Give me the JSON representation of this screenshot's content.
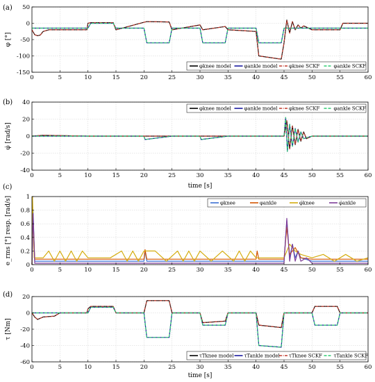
{
  "chart_data": [
    {
      "type": "line",
      "panel_label": "(a)",
      "ylabel": "φ [°]",
      "xlabel": "",
      "xlim": [
        0,
        60
      ],
      "ylim": [
        -150,
        50
      ],
      "xticks": [
        0,
        5,
        10,
        15,
        20,
        25,
        30,
        35,
        40,
        45,
        50,
        55,
        60
      ],
      "yticks": [
        -150,
        -100,
        -50,
        0,
        50
      ],
      "grid": true,
      "legend_position": "bottom-right",
      "series": [
        {
          "name": "φknee model",
          "color": "#000000",
          "dash": "solid",
          "x": [
            0,
            0.5,
            1,
            1.5,
            2,
            3,
            5,
            9.8,
            10,
            10.5,
            14.5,
            15,
            20,
            20.5,
            24.5,
            25,
            30,
            30.5,
            34.5,
            35,
            40,
            40.5,
            44.5,
            45,
            45.5,
            46,
            46.5,
            47,
            47.5,
            48,
            48.5,
            49,
            50,
            55,
            55.5,
            60
          ],
          "y": [
            -20,
            -35,
            -38,
            -36,
            -25,
            -20,
            -20,
            -20,
            0,
            2,
            2,
            -20,
            3,
            5,
            4,
            -20,
            -5,
            -20,
            -10,
            -20,
            -25,
            -100,
            -110,
            -60,
            10,
            -30,
            5,
            -20,
            -5,
            -15,
            -8,
            -12,
            -20,
            -20,
            0,
            0
          ]
        },
        {
          "name": "φankle model",
          "color": "#1a1aa0",
          "dash": "solid",
          "x": [
            0,
            10,
            10.5,
            14.5,
            15,
            20,
            20.5,
            24.5,
            25,
            30,
            30.5,
            34.5,
            35,
            40,
            40.5,
            44.5,
            45,
            55,
            55.5,
            60
          ],
          "y": [
            -15,
            -15,
            0,
            0,
            -15,
            -15,
            -60,
            -60,
            -15,
            -15,
            -60,
            -60,
            -15,
            -15,
            -60,
            -60,
            -15,
            -15,
            -15,
            -15
          ]
        },
        {
          "name": "φknee SCKF",
          "color": "#c0392b",
          "dash": "dashdot",
          "x": [
            0,
            0.5,
            1,
            1.5,
            2,
            3,
            5,
            9.8,
            10,
            10.5,
            14.5,
            15,
            20,
            20.5,
            24.5,
            25,
            30,
            30.5,
            34.5,
            35,
            40,
            40.5,
            44.5,
            45,
            45.5,
            46,
            46.5,
            47,
            47.5,
            48,
            48.5,
            49,
            50,
            55,
            55.5,
            60
          ],
          "y": [
            -20,
            -35,
            -38,
            -36,
            -25,
            -20,
            -20,
            -20,
            0,
            2,
            2,
            -20,
            3,
            5,
            4,
            -20,
            -5,
            -20,
            -10,
            -20,
            -25,
            -100,
            -110,
            -60,
            10,
            -30,
            5,
            -20,
            -5,
            -15,
            -8,
            -12,
            -20,
            -20,
            0,
            0
          ]
        },
        {
          "name": "φankle SCKF",
          "color": "#2ecc71",
          "dash": "dashed",
          "x": [
            0,
            10,
            10.5,
            14.5,
            15,
            20,
            20.5,
            24.5,
            25,
            30,
            30.5,
            34.5,
            35,
            40,
            40.5,
            44.5,
            45,
            55,
            55.5,
            60
          ],
          "y": [
            -15,
            -15,
            0,
            0,
            -15,
            -15,
            -60,
            -60,
            -15,
            -15,
            -60,
            -60,
            -15,
            -15,
            -60,
            -60,
            -15,
            -15,
            -15,
            -15
          ]
        }
      ]
    },
    {
      "type": "line",
      "panel_label": "(b)",
      "ylabel": "φ̇ [rad/s]",
      "xlabel": "time [s]",
      "xlim": [
        0,
        60
      ],
      "ylim": [
        -40,
        40
      ],
      "xticks": [
        0,
        5,
        10,
        15,
        20,
        25,
        30,
        35,
        40,
        45,
        50,
        55,
        60
      ],
      "yticks": [
        -40,
        -20,
        0,
        20,
        40
      ],
      "grid": true,
      "legend_position": "top-right",
      "series": [
        {
          "name": "φknee model",
          "color": "#000000",
          "dash": "solid",
          "x": [
            0,
            2,
            10,
            15,
            20,
            25,
            30,
            35,
            40,
            45,
            45.5,
            46,
            46.5,
            47,
            47.5,
            48,
            48.5,
            49,
            50,
            55,
            60
          ],
          "y": [
            0,
            1,
            0,
            0,
            0,
            0,
            0,
            0,
            0,
            0,
            18,
            -15,
            12,
            -10,
            8,
            -6,
            5,
            -3,
            0,
            0,
            0
          ]
        },
        {
          "name": "φankle model",
          "color": "#1a1aa0",
          "dash": "solid",
          "x": [
            0,
            10,
            20,
            20.2,
            25,
            30,
            30.2,
            35,
            40,
            45,
            45.3,
            45.6,
            46,
            46.5,
            47,
            47.5,
            48,
            48.5,
            50,
            60
          ],
          "y": [
            0,
            0,
            0,
            -4,
            0,
            0,
            -4,
            0,
            0,
            0,
            22,
            -18,
            14,
            -12,
            9,
            -7,
            5,
            -3,
            0,
            0
          ]
        },
        {
          "name": "φknee SCKF",
          "color": "#c0392b",
          "dash": "dashdot",
          "x": [
            0,
            2,
            10,
            15,
            20,
            25,
            30,
            35,
            40,
            45,
            45.5,
            46,
            46.5,
            47,
            47.5,
            48,
            48.5,
            49,
            50,
            55,
            60
          ],
          "y": [
            0,
            1,
            0,
            0,
            0,
            0,
            0,
            0,
            0,
            0,
            18,
            -15,
            12,
            -10,
            8,
            -6,
            5,
            -3,
            0,
            0,
            0
          ]
        },
        {
          "name": "φankle SCKF",
          "color": "#2ecc71",
          "dash": "dashed",
          "x": [
            0,
            10,
            20,
            20.2,
            25,
            30,
            30.2,
            35,
            40,
            45,
            45.3,
            45.6,
            46,
            46.5,
            47,
            47.5,
            48,
            48.5,
            50,
            60
          ],
          "y": [
            0,
            0,
            0,
            -4,
            0,
            0,
            -4,
            0,
            0,
            0,
            22,
            -18,
            14,
            -12,
            9,
            -7,
            5,
            -3,
            0,
            0
          ]
        }
      ]
    },
    {
      "type": "line",
      "panel_label": "(c)",
      "ylabel": "e_rms [°] resp. [rad/s]",
      "xlabel": "",
      "xlim": [
        0,
        60
      ],
      "ylim": [
        0,
        1
      ],
      "xticks": [
        0,
        5,
        10,
        15,
        20,
        25,
        30,
        35,
        40,
        45,
        50,
        55,
        60
      ],
      "yticks": [
        0,
        0.2,
        0.4,
        0.6,
        0.8,
        1
      ],
      "grid": true,
      "legend_position": "top-right",
      "series": [
        {
          "name": "φknee",
          "color": "#3b6fd4",
          "dash": "solid",
          "x": [
            0,
            0.2,
            0.5,
            5,
            10,
            20,
            20.2,
            20.5,
            30,
            40,
            45,
            45.5,
            46,
            46.5,
            47,
            47.5,
            48,
            50,
            55,
            60
          ],
          "y": [
            0,
            0.8,
            0.05,
            0.05,
            0.05,
            0.05,
            0.2,
            0.05,
            0.05,
            0.05,
            0.05,
            0.65,
            0.1,
            0.3,
            0.1,
            0.2,
            0.1,
            0.05,
            0.05,
            0.05
          ]
        },
        {
          "name": "φankle",
          "color": "#d35400",
          "dash": "solid",
          "x": [
            0,
            0.2,
            0.5,
            10,
            20,
            20.2,
            20.5,
            30,
            40,
            40.2,
            40.5,
            45,
            45.5,
            46,
            47,
            48,
            50,
            60
          ],
          "y": [
            0,
            0.7,
            0.08,
            0.08,
            0.08,
            0.22,
            0.08,
            0.08,
            0.08,
            0.2,
            0.08,
            0.08,
            0.55,
            0.15,
            0.25,
            0.1,
            0.08,
            0.08
          ]
        },
        {
          "name": "φ̇knee",
          "color": "#d4ac0d",
          "dash": "solid",
          "x": [
            0,
            0.1,
            0.4,
            2,
            3,
            4,
            5,
            6,
            7,
            8,
            9,
            10,
            12,
            14,
            16,
            17,
            18,
            19,
            20,
            22,
            24,
            26,
            27,
            28,
            29,
            30,
            32,
            34,
            36,
            37,
            38,
            39,
            40,
            42,
            44,
            45,
            46,
            47,
            48,
            50,
            52,
            54,
            56,
            58,
            60
          ],
          "y": [
            0,
            1,
            0.1,
            0.1,
            0.2,
            0.05,
            0.2,
            0.05,
            0.2,
            0.05,
            0.2,
            0.1,
            0.1,
            0.1,
            0.2,
            0.05,
            0.2,
            0.05,
            0.2,
            0.2,
            0.05,
            0.2,
            0.05,
            0.2,
            0.05,
            0.2,
            0.05,
            0.2,
            0.05,
            0.2,
            0.05,
            0.2,
            0.1,
            0.1,
            0.1,
            0.1,
            0.3,
            0.2,
            0.15,
            0.1,
            0.15,
            0.05,
            0.15,
            0.05,
            0.1
          ]
        },
        {
          "name": "φ̇ankle",
          "color": "#7d3c98",
          "dash": "solid",
          "x": [
            0,
            0.2,
            0.5,
            10,
            20,
            30,
            40,
            45,
            45.5,
            46,
            46.5,
            47,
            47.5,
            48,
            49,
            50,
            60
          ],
          "y": [
            0,
            0.75,
            0.02,
            0.02,
            0.02,
            0.02,
            0.02,
            0.02,
            0.68,
            0.05,
            0.3,
            0.05,
            0.2,
            0.05,
            0.1,
            0.02,
            0.02
          ]
        }
      ]
    },
    {
      "type": "line",
      "panel_label": "(d)",
      "ylabel": "τ [Nm]",
      "xlabel": "time [s]",
      "xlim": [
        0,
        60
      ],
      "ylim": [
        -60,
        20
      ],
      "xticks": [
        0,
        5,
        10,
        15,
        20,
        25,
        30,
        35,
        40,
        45,
        50,
        55,
        60
      ],
      "yticks": [
        -60,
        -40,
        -20,
        0,
        20
      ],
      "grid": true,
      "legend_position": "bottom-right",
      "series": [
        {
          "name": "τTknee model",
          "color": "#000000",
          "dash": "solid",
          "x": [
            0,
            0.5,
            1,
            2,
            4,
            5,
            9.8,
            10,
            10.5,
            14.5,
            15,
            20,
            20.5,
            24.5,
            25,
            30,
            30.5,
            34.5,
            35,
            40,
            40.5,
            44.5,
            45,
            50,
            50.5,
            54.5,
            55,
            60
          ],
          "y": [
            0,
            -5,
            -8,
            -5,
            -4,
            0,
            0,
            5,
            8,
            8,
            0,
            0,
            15,
            15,
            0,
            0,
            -12,
            -10,
            0,
            0,
            -15,
            -18,
            0,
            0,
            8,
            8,
            0,
            0
          ]
        },
        {
          "name": "τTankle model",
          "color": "#1a1aa0",
          "dash": "solid",
          "x": [
            0,
            10,
            10.5,
            14.5,
            15,
            20,
            20.5,
            24.5,
            25,
            30,
            30.5,
            34.5,
            35,
            40,
            40.5,
            44.5,
            45,
            50,
            50.5,
            54.5,
            55,
            60
          ],
          "y": [
            0,
            0,
            7,
            7,
            0,
            0,
            -30,
            -30,
            0,
            0,
            -15,
            -15,
            0,
            0,
            -40,
            -42,
            0,
            0,
            -15,
            -15,
            0,
            0
          ]
        },
        {
          "name": "τTknee SCKF",
          "color": "#c0392b",
          "dash": "dashdot",
          "x": [
            0,
            0.5,
            1,
            2,
            4,
            5,
            9.8,
            10,
            10.5,
            14.5,
            15,
            20,
            20.5,
            24.5,
            25,
            30,
            30.5,
            34.5,
            35,
            40,
            40.5,
            44.5,
            45,
            50,
            50.5,
            54.5,
            55,
            60
          ],
          "y": [
            0,
            -5,
            -8,
            -5,
            -4,
            0,
            0,
            5,
            8,
            8,
            0,
            0,
            15,
            15,
            0,
            0,
            -12,
            -10,
            0,
            0,
            -15,
            -18,
            0,
            0,
            8,
            8,
            0,
            0
          ]
        },
        {
          "name": "τTankle SCKF",
          "color": "#2ecc71",
          "dash": "dashed",
          "x": [
            0,
            10,
            10.5,
            14.5,
            15,
            20,
            20.5,
            24.5,
            25,
            30,
            30.5,
            34.5,
            35,
            40,
            40.5,
            44.5,
            45,
            50,
            50.5,
            54.5,
            55,
            60
          ],
          "y": [
            0,
            0,
            7,
            7,
            0,
            0,
            -30,
            -30,
            0,
            0,
            -15,
            -15,
            0,
            0,
            -40,
            -42,
            0,
            0,
            -15,
            -15,
            0,
            0
          ]
        }
      ]
    }
  ]
}
